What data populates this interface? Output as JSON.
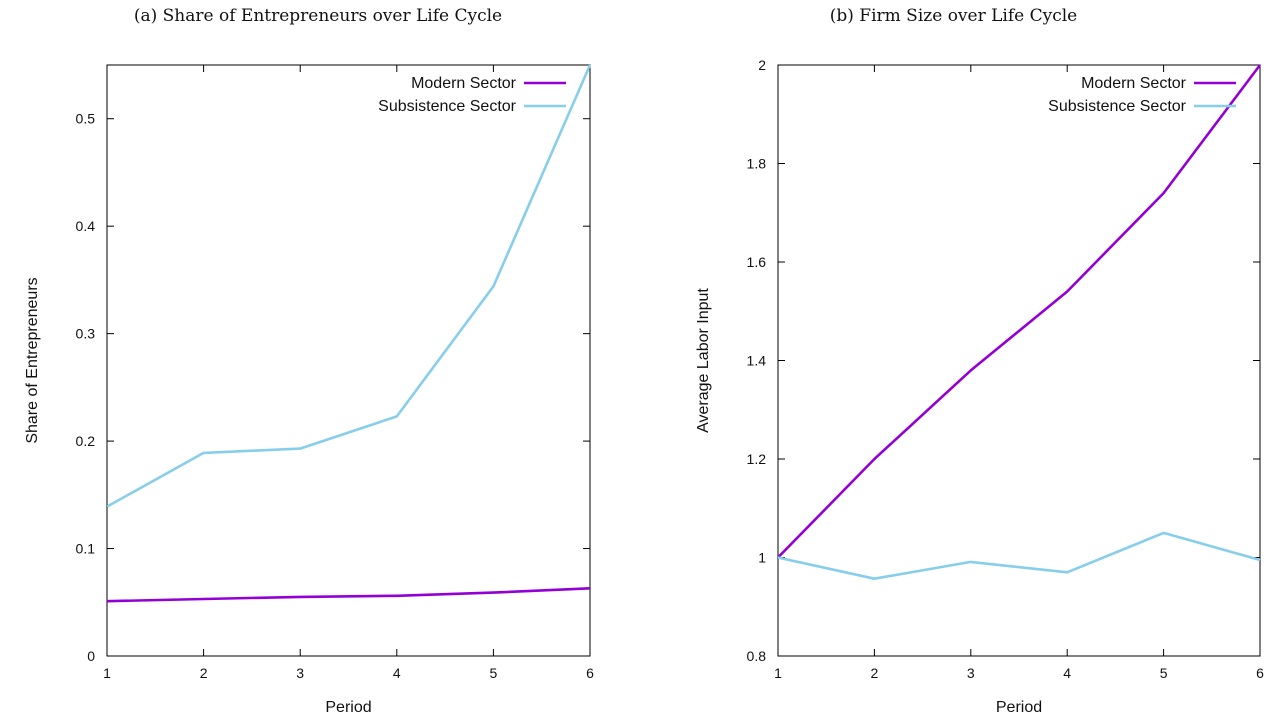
{
  "chart_data": [
    {
      "type": "line",
      "title": "(a) Share of Entrepreneurs over Life Cycle",
      "xlabel": "Period",
      "ylabel": "Share of Entrepreneurs",
      "x": [
        1,
        2,
        3,
        4,
        5,
        6
      ],
      "xlim": [
        1,
        6
      ],
      "ylim": [
        0,
        0.55
      ],
      "xticks": [
        "1",
        "2",
        "3",
        "4",
        "5",
        "6"
      ],
      "yticks": [
        {
          "value": 0,
          "label": "0"
        },
        {
          "value": 0.1,
          "label": "0.1"
        },
        {
          "value": 0.2,
          "label": "0.2"
        },
        {
          "value": 0.3,
          "label": "0.3"
        },
        {
          "value": 0.4,
          "label": "0.4"
        },
        {
          "value": 0.5,
          "label": "0.5"
        }
      ],
      "grid": false,
      "legend_position": "top-right",
      "series": [
        {
          "name": "Modern Sector",
          "color": "#9400d3",
          "values": [
            0.051,
            0.053,
            0.055,
            0.056,
            0.059,
            0.063
          ]
        },
        {
          "name": "Subsistence Sector",
          "color": "#87ceeb",
          "values": [
            0.139,
            0.189,
            0.193,
            0.223,
            0.344,
            0.55
          ]
        }
      ]
    },
    {
      "type": "line",
      "title": "(b) Firm Size over Life Cycle",
      "xlabel": "Period",
      "ylabel": "Average Labor Input",
      "x": [
        1,
        2,
        3,
        4,
        5,
        6
      ],
      "xlim": [
        1,
        6
      ],
      "ylim": [
        0.8,
        2
      ],
      "xticks": [
        "1",
        "2",
        "3",
        "4",
        "5",
        "6"
      ],
      "yticks": [
        {
          "value": 0.8,
          "label": "0.8"
        },
        {
          "value": 1,
          "label": "1"
        },
        {
          "value": 1.2,
          "label": "1.2"
        },
        {
          "value": 1.4,
          "label": "1.4"
        },
        {
          "value": 1.6,
          "label": "1.6"
        },
        {
          "value": 1.8,
          "label": "1.8"
        },
        {
          "value": 2,
          "label": "2"
        }
      ],
      "grid": false,
      "legend_position": "top-right",
      "series": [
        {
          "name": "Modern Sector",
          "color": "#9400d3",
          "values": [
            1.0,
            1.2,
            1.38,
            1.54,
            1.74,
            2.0
          ]
        },
        {
          "name": "Subsistence Sector",
          "color": "#87ceeb",
          "values": [
            1.0,
            0.957,
            0.991,
            0.97,
            1.05,
            0.995
          ]
        }
      ]
    }
  ]
}
